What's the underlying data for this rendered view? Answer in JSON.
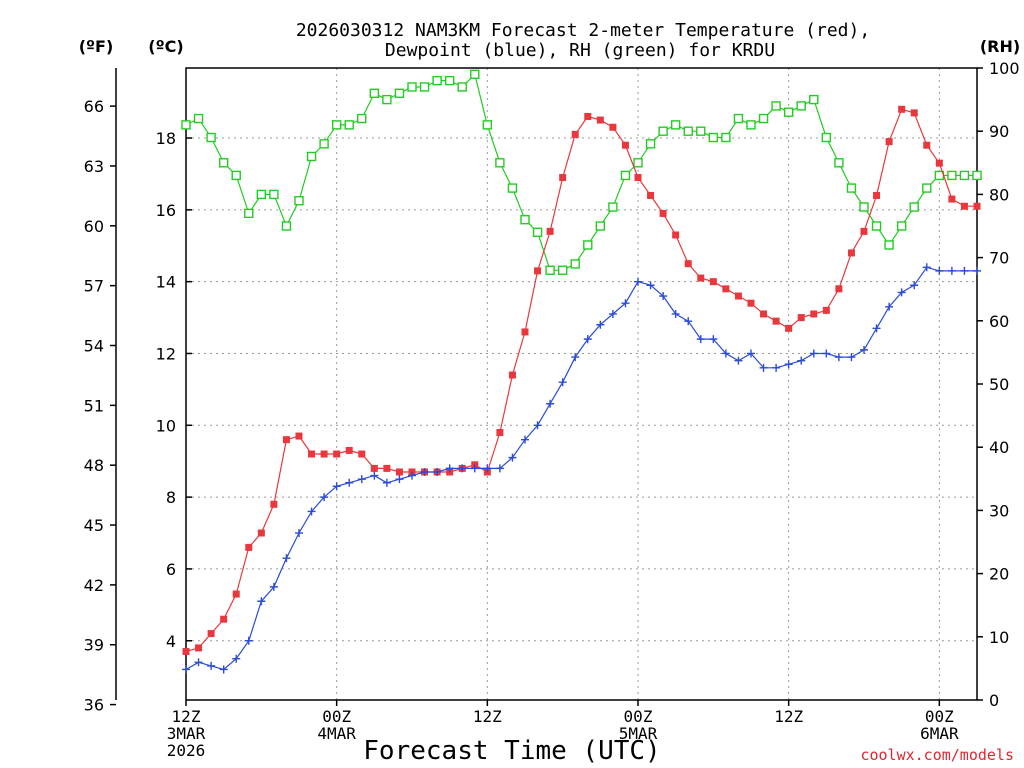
{
  "chart_data": {
    "type": "line",
    "title_line1": "2026030312 NAM3KM Forecast 2-meter Temperature (red),",
    "title_line2": "Dewpoint (blue), RH (green) for KRDU",
    "xlabel": "Forecast Time (UTC)",
    "credit": "coolwx.com/models",
    "unit_f": "(ºF)",
    "unit_c": "(ºC)",
    "unit_rh": "(RH)",
    "x_range_hours": [
      0,
      63
    ],
    "ylim_c": [
      2.35,
      19.95
    ],
    "ylim_rh": [
      0,
      100
    ],
    "f_ticks": [
      36,
      39,
      42,
      45,
      48,
      51,
      54,
      57,
      60,
      63,
      66
    ],
    "c_ticks": [
      4,
      6,
      8,
      10,
      12,
      14,
      16,
      18
    ],
    "rh_ticks": [
      0,
      10,
      20,
      30,
      40,
      50,
      60,
      70,
      80,
      90,
      100
    ],
    "x_ticks": [
      {
        "hour": 0,
        "lines": [
          "12Z",
          "3MAR",
          "2026"
        ]
      },
      {
        "hour": 12,
        "lines": [
          "00Z",
          "4MAR"
        ]
      },
      {
        "hour": 24,
        "lines": [
          "12Z"
        ]
      },
      {
        "hour": 36,
        "lines": [
          "00Z",
          "5MAR"
        ]
      },
      {
        "hour": 48,
        "lines": [
          "12Z"
        ]
      },
      {
        "hour": 60,
        "lines": [
          "00Z",
          "6MAR"
        ]
      }
    ],
    "hours": [
      0,
      1,
      2,
      3,
      4,
      5,
      6,
      7,
      8,
      9,
      10,
      11,
      12,
      13,
      14,
      15,
      16,
      17,
      18,
      19,
      20,
      21,
      22,
      23,
      24,
      25,
      26,
      27,
      28,
      29,
      30,
      31,
      32,
      33,
      34,
      35,
      36,
      37,
      38,
      39,
      40,
      41,
      42,
      43,
      44,
      45,
      46,
      47,
      48,
      49,
      50,
      51,
      52,
      53,
      54,
      55,
      56,
      57,
      58,
      59,
      60,
      61,
      62,
      63
    ],
    "series": [
      {
        "name": "Temperature (°C)",
        "color": "#e8383d",
        "axis": "c",
        "marker": "filled-square",
        "values": [
          3.7,
          3.8,
          4.2,
          4.6,
          5.3,
          6.6,
          7.0,
          7.8,
          9.6,
          9.7,
          9.2,
          9.2,
          9.2,
          9.3,
          9.2,
          8.8,
          8.8,
          8.7,
          8.7,
          8.7,
          8.7,
          8.7,
          8.8,
          8.9,
          8.7,
          9.8,
          11.4,
          12.6,
          14.3,
          15.4,
          16.9,
          18.1,
          18.6,
          18.5,
          18.3,
          17.8,
          16.9,
          16.4,
          15.9,
          15.3,
          14.5,
          14.1,
          14.0,
          13.8,
          13.6,
          13.4,
          13.1,
          12.9,
          12.7,
          13.0,
          13.1,
          13.2,
          13.8,
          14.8,
          15.4,
          16.4,
          17.9,
          18.8,
          18.7,
          17.8,
          17.3,
          16.3,
          16.1,
          16.1
        ]
      },
      {
        "name": "Dewpoint (°C)",
        "color": "#2b4bd8",
        "axis": "c",
        "marker": "plus",
        "values": [
          3.2,
          3.4,
          3.3,
          3.2,
          3.5,
          4.0,
          5.1,
          5.5,
          6.3,
          7.0,
          7.6,
          8.0,
          8.3,
          8.4,
          8.5,
          8.6,
          8.4,
          8.5,
          8.6,
          8.7,
          8.7,
          8.8,
          8.8,
          8.8,
          8.8,
          8.8,
          9.1,
          9.6,
          10.0,
          10.6,
          11.2,
          11.9,
          12.4,
          12.8,
          13.1,
          13.4,
          14.0,
          13.9,
          13.6,
          13.1,
          12.9,
          12.4,
          12.4,
          12.0,
          11.8,
          12.0,
          11.6,
          11.6,
          11.7,
          11.8,
          12.0,
          12.0,
          11.9,
          11.9,
          12.1,
          12.7,
          13.3,
          13.7,
          13.9,
          14.4,
          14.3,
          14.3,
          14.3,
          14.3
        ]
      },
      {
        "name": "RH (%)",
        "color": "#22cc22",
        "axis": "rh",
        "marker": "open-square",
        "values": [
          91,
          92,
          89,
          85,
          83,
          77,
          80,
          80,
          75,
          79,
          86,
          88,
          91,
          91,
          92,
          96,
          95,
          96,
          97,
          97,
          98,
          98,
          97,
          99,
          91,
          85,
          81,
          76,
          74,
          68,
          68,
          69,
          72,
          75,
          78,
          83,
          85,
          88,
          90,
          91,
          90,
          90,
          89,
          89,
          92,
          91,
          92,
          94,
          93,
          94,
          95,
          89,
          85,
          81,
          78,
          75,
          72,
          75,
          78,
          81,
          83,
          83,
          83,
          83
        ]
      }
    ]
  }
}
